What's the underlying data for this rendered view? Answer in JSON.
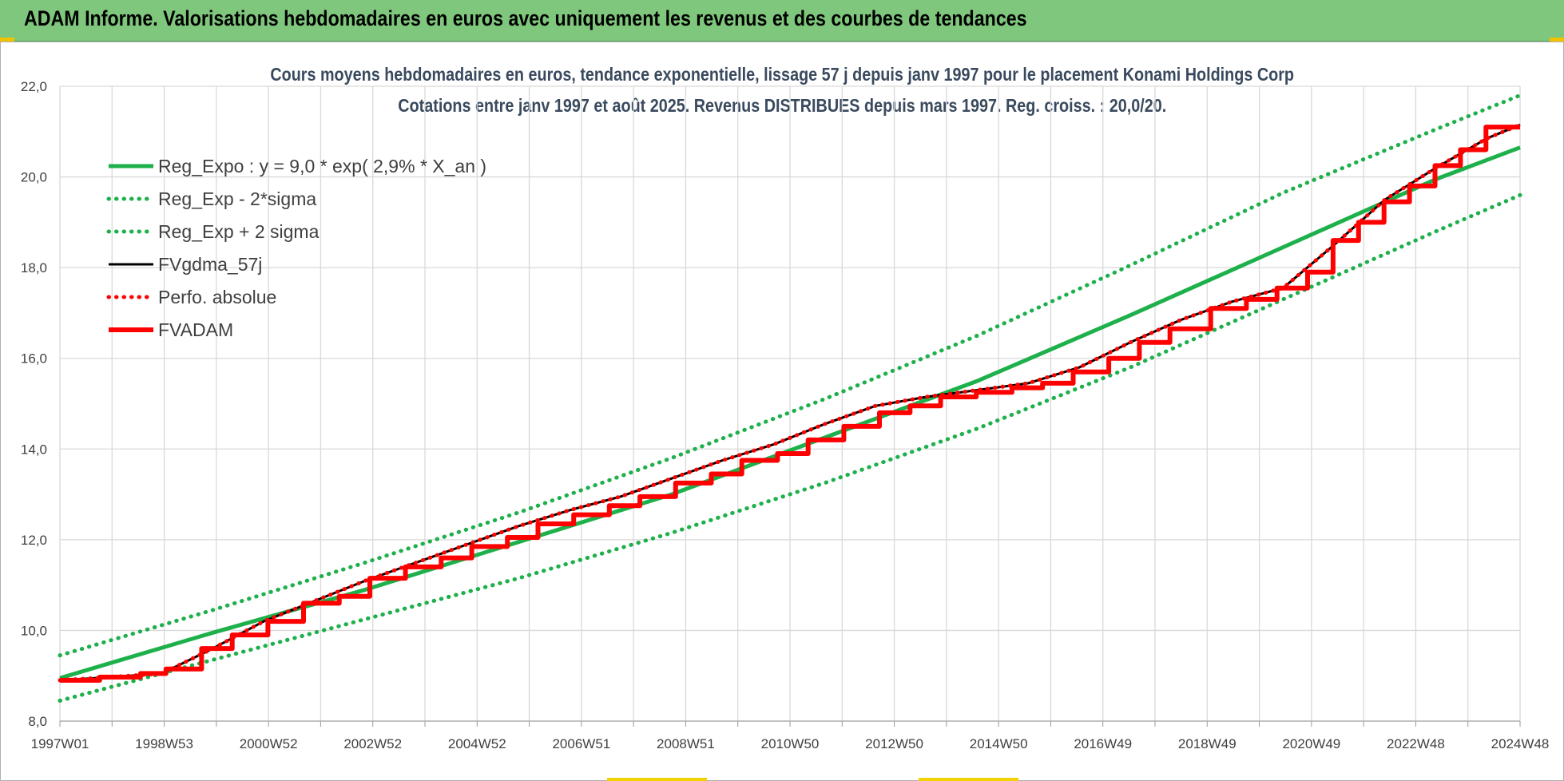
{
  "header": {
    "title": "ADAM Informe. Valorisations hebdomadaires en euros avec uniquement les revenus et des courbes de tendances"
  },
  "colors": {
    "banner": "#7fc77d",
    "trend_green": "#1db04b",
    "black": "#000000",
    "red": "#ff0000",
    "grid": "#d9d9d9"
  },
  "chart_data": {
    "type": "line",
    "title": "Cours moyens hebdomadaires en euros, tendance exponentielle, lissage 57 j depuis janv 1997 pour le placement Konami Holdings Corp",
    "subtitle": "Cotations entre janv 1997 et août 2025. Revenus DISTRIBUES depuis mars 1997. Reg. croiss. : 20,0/20.",
    "xlabel": "",
    "ylabel": "",
    "ylim": [
      8,
      22
    ],
    "y_ticks": [
      "8,0",
      "10,0",
      "12,0",
      "14,0",
      "16,0",
      "18,0",
      "20,0",
      "22,0"
    ],
    "x_range": [
      1997.0,
      2025.65
    ],
    "x_tick_labels": [
      "1997W01",
      "1998W53",
      "2000W52",
      "2002W52",
      "2004W52",
      "2006W51",
      "2008W51",
      "2010W50",
      "2012W50",
      "2014W50",
      "2016W49",
      "2018W49",
      "2020W49",
      "2022W48",
      "2024W48"
    ],
    "grid": true,
    "legend_position": "top-left",
    "series": [
      {
        "name": "Reg_Expo : y = 9,0 * exp( 2,9% *  X_an )",
        "style": "solid-thick",
        "color": "#1db04b",
        "x": [
          1997,
          2000,
          2003,
          2006,
          2009,
          2012,
          2015,
          2018,
          2021,
          2024,
          2025.65
        ],
        "values": [
          8.95,
          9.95,
          10.9,
          11.95,
          13.0,
          14.25,
          15.5,
          16.95,
          18.45,
          19.95,
          20.65
        ]
      },
      {
        "name": "Reg_Exp - 2*sigma",
        "style": "dotted",
        "color": "#1db04b",
        "x": [
          1997,
          2000,
          2003,
          2006,
          2009,
          2012,
          2015,
          2018,
          2021,
          2024,
          2025.65
        ],
        "values": [
          8.45,
          9.35,
          10.25,
          11.15,
          12.15,
          13.25,
          14.45,
          15.8,
          17.3,
          18.8,
          19.6
        ]
      },
      {
        "name": "Reg_Exp + 2 sigma",
        "style": "dotted",
        "color": "#1db04b",
        "x": [
          1997,
          2000,
          2003,
          2006,
          2009,
          2012,
          2015,
          2018,
          2021,
          2024,
          2025.65
        ],
        "values": [
          9.45,
          10.45,
          11.5,
          12.6,
          13.8,
          15.1,
          16.5,
          18.05,
          19.65,
          21.05,
          21.8
        ]
      },
      {
        "name": "FVgdma_57j",
        "style": "solid-thin",
        "color": "#000000",
        "x": [
          1997,
          1998,
          1999,
          2000,
          2001,
          2002,
          2003,
          2004,
          2005,
          2006,
          2007,
          2008,
          2009,
          2010,
          2011,
          2012,
          2013,
          2014,
          2015,
          2016,
          2017,
          2018,
          2019,
          2020,
          2021,
          2022,
          2023,
          2024,
          2025,
          2025.65
        ],
        "values": [
          8.9,
          8.97,
          9.05,
          9.6,
          10.2,
          10.65,
          11.1,
          11.5,
          11.9,
          12.3,
          12.65,
          12.95,
          13.35,
          13.75,
          14.1,
          14.55,
          14.95,
          15.15,
          15.3,
          15.45,
          15.8,
          16.35,
          16.85,
          17.25,
          17.55,
          18.5,
          19.5,
          20.2,
          20.85,
          21.15
        ]
      },
      {
        "name": "Perfo. absolue",
        "style": "dotted",
        "color": "#ff0000",
        "x": [
          1997,
          1998,
          1999,
          2000,
          2001,
          2002,
          2003,
          2004,
          2005,
          2006,
          2007,
          2008,
          2009,
          2010,
          2011,
          2012,
          2013,
          2014,
          2015,
          2016,
          2017,
          2018,
          2019,
          2020,
          2021,
          2022,
          2023,
          2024,
          2025,
          2025.65
        ],
        "values": [
          8.9,
          8.97,
          9.05,
          9.6,
          10.2,
          10.65,
          11.1,
          11.5,
          11.9,
          12.3,
          12.65,
          12.95,
          13.35,
          13.75,
          14.1,
          14.55,
          14.95,
          15.15,
          15.3,
          15.45,
          15.8,
          16.35,
          16.85,
          17.25,
          17.55,
          18.5,
          19.5,
          20.2,
          20.85,
          21.15
        ]
      },
      {
        "name": "FVADAM",
        "style": "step-thick",
        "color": "#ff0000",
        "x": [
          1997,
          1998,
          1998.8,
          1999.3,
          2000.0,
          2000.6,
          2001.3,
          2002.0,
          2002.7,
          2003.3,
          2004.0,
          2004.7,
          2005.3,
          2006.0,
          2006.6,
          2007.3,
          2008.0,
          2008.6,
          2009.3,
          2010.0,
          2010.6,
          2011.3,
          2011.9,
          2012.6,
          2013.3,
          2013.9,
          2014.5,
          2015.2,
          2015.9,
          2016.5,
          2017.1,
          2017.8,
          2018.4,
          2019.0,
          2019.8,
          2020.5,
          2021.1,
          2021.7,
          2022.2,
          2022.7,
          2023.2,
          2023.7,
          2024.2,
          2024.7,
          2025.2,
          2025.65
        ],
        "values": [
          8.9,
          8.97,
          9.05,
          9.15,
          9.6,
          9.9,
          10.2,
          10.6,
          10.75,
          11.15,
          11.4,
          11.6,
          11.85,
          12.05,
          12.35,
          12.55,
          12.75,
          12.95,
          13.25,
          13.45,
          13.75,
          13.9,
          14.2,
          14.5,
          14.8,
          14.95,
          15.15,
          15.25,
          15.35,
          15.45,
          15.7,
          16.0,
          16.35,
          16.65,
          17.1,
          17.3,
          17.55,
          17.9,
          18.6,
          19.0,
          19.45,
          19.8,
          20.25,
          20.6,
          21.1,
          21.1
        ]
      }
    ]
  }
}
